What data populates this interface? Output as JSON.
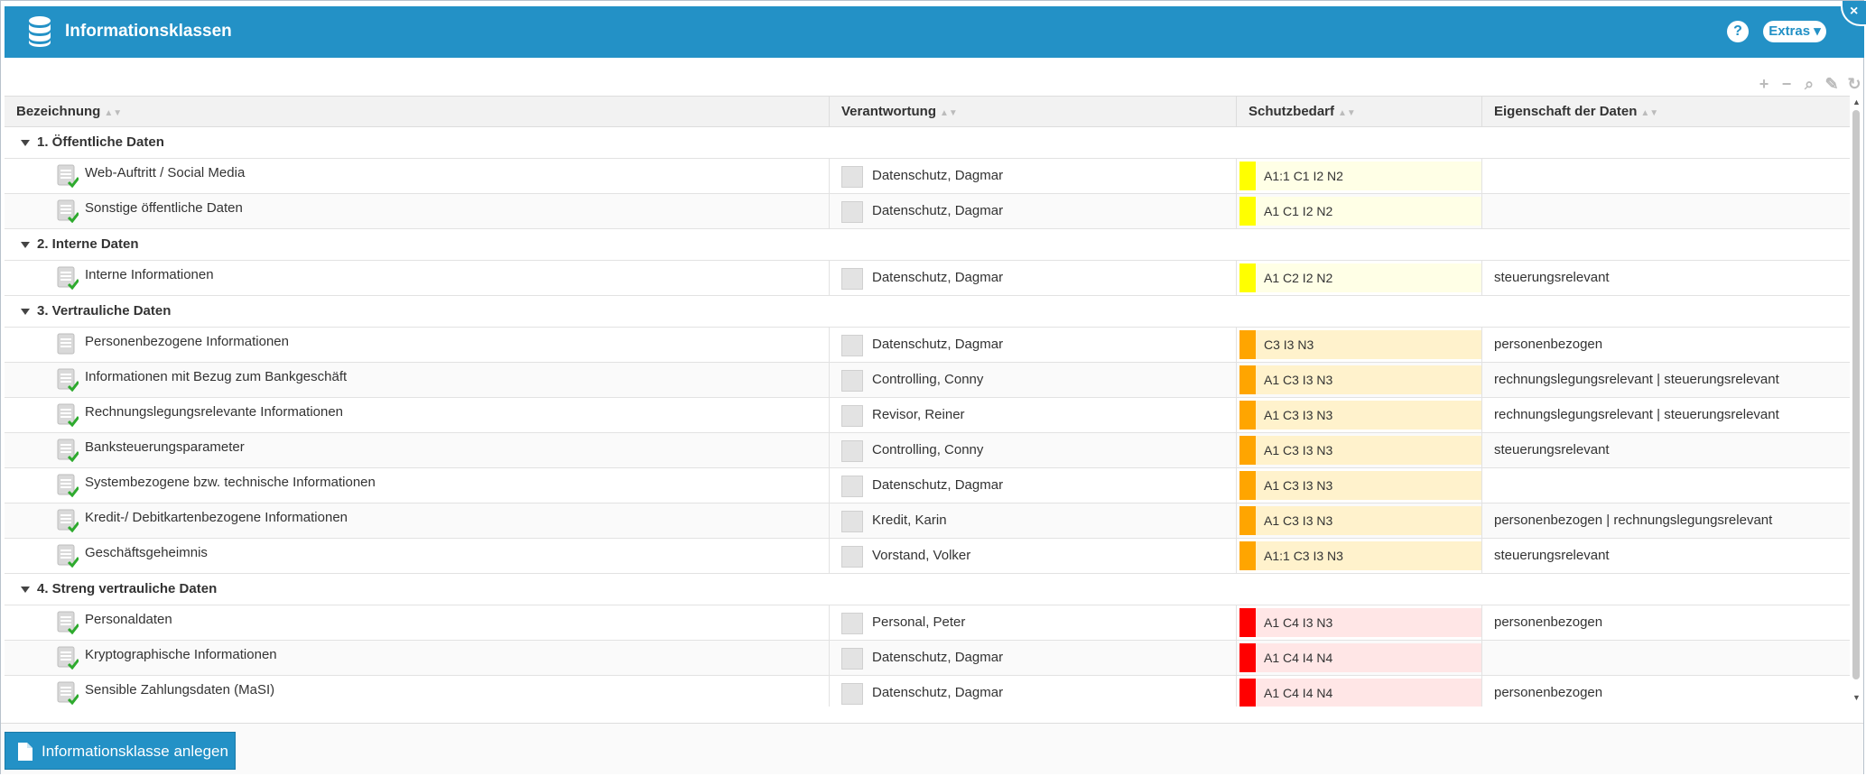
{
  "window": {
    "title": "Informationsklassen",
    "help_label": "?",
    "extras_label": "Extras ▾",
    "close_label": "×"
  },
  "toolbar": {
    "icons": [
      "plus-icon",
      "minus-icon",
      "search-icon",
      "wrench-icon",
      "refresh-icon"
    ],
    "plus": "+",
    "minus": "−",
    "search": "⌕",
    "wrench": "✎",
    "refresh": "↻"
  },
  "columns": [
    "Bezeichnung",
    "Verantwortung",
    "Schutzbedarf",
    "Eigenschaft der Daten"
  ],
  "colors": {
    "header_blue": "#2391c6",
    "yellow": "#ffff00",
    "yellow_bg": "#ffffe6",
    "orange": "#ffa500",
    "orange_bg": "#fff2cc",
    "red": "#ff0000",
    "red_bg": "#ffe6e6",
    "check_green": "#2eaa2e"
  },
  "groups": [
    {
      "label": "1. Öffentliche Daten",
      "items": [
        {
          "name": "Web-Auftritt / Social Media",
          "owner": "Datenschutz, Dagmar",
          "protection": "A1:1 C1 I2 N2",
          "level": "yellow",
          "property": "",
          "checked": true
        },
        {
          "name": "Sonstige öffentliche Daten",
          "owner": "Datenschutz, Dagmar",
          "protection": "A1 C1 I2 N2",
          "level": "yellow",
          "property": "",
          "checked": true
        }
      ]
    },
    {
      "label": "2. Interne Daten",
      "items": [
        {
          "name": "Interne Informationen",
          "owner": "Datenschutz, Dagmar",
          "protection": "A1 C2 I2 N2",
          "level": "yellow",
          "property": "steuerungsrelevant",
          "checked": true
        }
      ]
    },
    {
      "label": "3. Vertrauliche Daten",
      "items": [
        {
          "name": "Personenbezogene Informationen",
          "owner": "Datenschutz, Dagmar",
          "protection": "C3 I3 N3",
          "level": "orange",
          "property": "personenbezogen",
          "checked": false
        },
        {
          "name": "Informationen mit Bezug zum Bankgeschäft",
          "owner": "Controlling, Conny",
          "protection": "A1 C3 I3 N3",
          "level": "orange",
          "property": "rechnungslegungsrelevant | steuerungsrelevant",
          "checked": true
        },
        {
          "name": "Rechnungslegungsrelevante Informationen",
          "owner": "Revisor, Reiner",
          "protection": "A1 C3 I3 N3",
          "level": "orange",
          "property": "rechnungslegungsrelevant | steuerungsrelevant",
          "checked": true
        },
        {
          "name": "Banksteuerungsparameter",
          "owner": "Controlling, Conny",
          "protection": "A1 C3 I3 N3",
          "level": "orange",
          "property": "steuerungsrelevant",
          "checked": true
        },
        {
          "name": "Systembezogene bzw. technische Informationen",
          "owner": "Datenschutz, Dagmar",
          "protection": "A1 C3 I3 N3",
          "level": "orange",
          "property": "",
          "checked": true
        },
        {
          "name": "Kredit-/ Debitkartenbezogene Informationen",
          "owner": "Kredit, Karin",
          "protection": "A1 C3 I3 N3",
          "level": "orange",
          "property": "personenbezogen | rechnungslegungsrelevant",
          "checked": true
        },
        {
          "name": "Geschäftsgeheimnis",
          "owner": "Vorstand, Volker",
          "protection": "A1:1 C3 I3 N3",
          "level": "orange",
          "property": "steuerungsrelevant",
          "checked": true
        }
      ]
    },
    {
      "label": "4. Streng vertrauliche Daten",
      "items": [
        {
          "name": "Personaldaten",
          "owner": "Personal, Peter",
          "protection": "A1 C4 I3 N3",
          "level": "red",
          "property": "personenbezogen",
          "checked": true
        },
        {
          "name": "Kryptographische Informationen",
          "owner": "Datenschutz, Dagmar",
          "protection": "A1 C4 I4 N4",
          "level": "red",
          "property": "",
          "checked": true
        },
        {
          "name": "Sensible Zahlungsdaten (MaSI)",
          "owner": "Datenschutz, Dagmar",
          "protection": "A1 C4 I4 N4",
          "level": "red",
          "property": "personenbezogen",
          "checked": true
        }
      ]
    }
  ],
  "footer": {
    "create_label": "Informationsklasse anlegen"
  }
}
